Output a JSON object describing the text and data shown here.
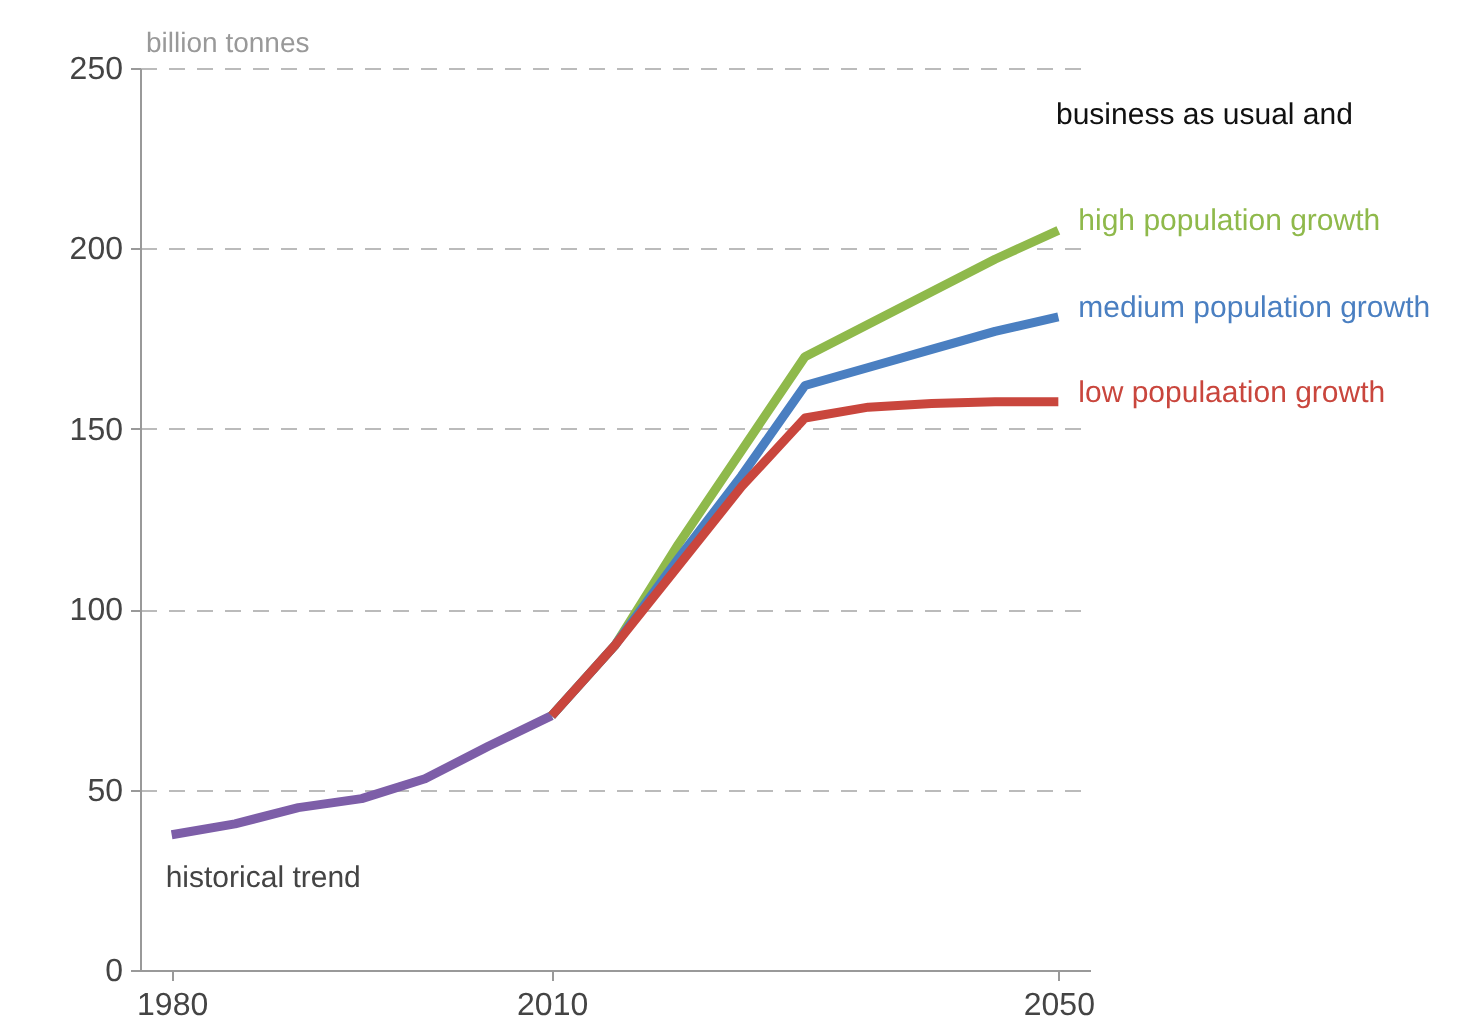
{
  "chart_data": {
    "type": "line",
    "ylabel": "billion tonnes",
    "annotations": [
      "business as usual and"
    ],
    "xlim": [
      1977.5,
      2052.5
    ],
    "xticks": [
      1980,
      2010,
      2050
    ],
    "ylim": [
      0,
      250
    ],
    "yticks": [
      0,
      50,
      100,
      150,
      200,
      250
    ],
    "grid": "y",
    "series": [
      {
        "name": "historical trend",
        "color": "#7d5ea8",
        "x": [
          1980,
          1985,
          1990,
          1995,
          2000,
          2005,
          2010
        ],
        "values": [
          37.5,
          40.5,
          45,
          47.5,
          53,
          62,
          70.5
        ]
      },
      {
        "name": "high population growth",
        "color": "#8fb94b",
        "x": [
          2010,
          2015,
          2020,
          2025,
          2030,
          2035,
          2040,
          2045,
          2050
        ],
        "values": [
          70.5,
          90,
          118,
          144,
          170,
          179,
          188,
          197,
          205
        ]
      },
      {
        "name": "medium population growth",
        "color": "#4a7fc1",
        "x": [
          2010,
          2015,
          2020,
          2025,
          2030,
          2035,
          2040,
          2045,
          2050
        ],
        "values": [
          70.5,
          90,
          114,
          137,
          162,
          167,
          172,
          177,
          181
        ]
      },
      {
        "name": "low populaation growth",
        "color": "#c9463d",
        "x": [
          2010,
          2015,
          2020,
          2025,
          2030,
          2035,
          2040,
          2045,
          2050
        ],
        "values": [
          70.5,
          90,
          112,
          134,
          153,
          156,
          157,
          157.5,
          157.5
        ]
      }
    ]
  }
}
